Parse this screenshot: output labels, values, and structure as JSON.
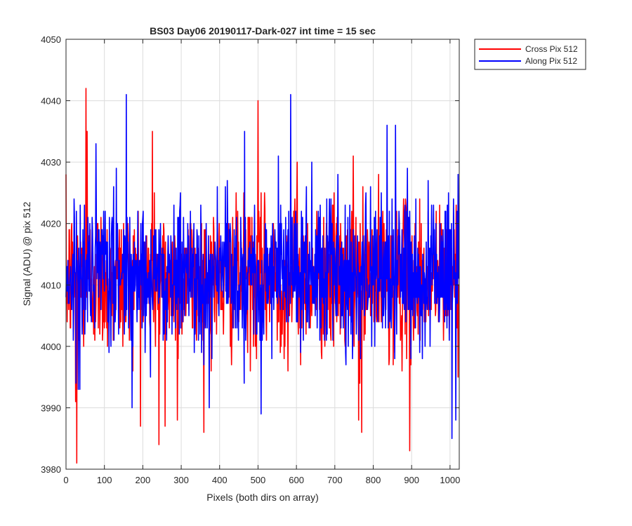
{
  "chart_data": {
    "type": "line",
    "title": "BS03 Day06 20190117-Dark-027 int time = 15 sec",
    "xlabel": "Pixels (both dirs on array)",
    "ylabel": "Signal (ADU) @ pix 512",
    "xlim": [
      0,
      1024
    ],
    "ylim": [
      3980,
      4050
    ],
    "xticks": [
      0,
      100,
      200,
      300,
      400,
      500,
      600,
      700,
      800,
      900,
      1000
    ],
    "yticks": [
      3980,
      3990,
      4000,
      4010,
      4020,
      4030,
      4040,
      4050
    ],
    "grid": true,
    "legend_location": "outside-top-right",
    "series": [
      {
        "name": "Cross Pix 512",
        "color": "#ff0000",
        "n_points": 1024,
        "mean": 4011,
        "std": 6,
        "approx_min": 3981,
        "approx_max": 4042,
        "notable_points": [
          {
            "x": 52,
            "y": 4042
          },
          {
            "x": 55,
            "y": 4035
          },
          {
            "x": 28,
            "y": 3981
          },
          {
            "x": 25,
            "y": 3991
          },
          {
            "x": 225,
            "y": 4035
          },
          {
            "x": 242,
            "y": 3984
          },
          {
            "x": 258,
            "y": 3987
          },
          {
            "x": 290,
            "y": 3988
          },
          {
            "x": 500,
            "y": 4040
          },
          {
            "x": 770,
            "y": 3986
          },
          {
            "x": 895,
            "y": 3983
          },
          {
            "x": 762,
            "y": 3988
          },
          {
            "x": 748,
            "y": 4031
          },
          {
            "x": 602,
            "y": 4030
          }
        ]
      },
      {
        "name": "Along Pix 512",
        "color": "#0000ff",
        "n_points": 1024,
        "mean": 4012,
        "std": 6,
        "approx_min": 3985,
        "approx_max": 4041,
        "notable_points": [
          {
            "x": 157,
            "y": 4041
          },
          {
            "x": 585,
            "y": 4041
          },
          {
            "x": 508,
            "y": 3989
          },
          {
            "x": 1005,
            "y": 3985
          },
          {
            "x": 373,
            "y": 3990
          },
          {
            "x": 32,
            "y": 3993
          },
          {
            "x": 1015,
            "y": 3988
          },
          {
            "x": 553,
            "y": 4031
          },
          {
            "x": 836,
            "y": 4036
          },
          {
            "x": 858,
            "y": 4036
          },
          {
            "x": 640,
            "y": 4030
          },
          {
            "x": 465,
            "y": 4035
          }
        ]
      }
    ]
  }
}
